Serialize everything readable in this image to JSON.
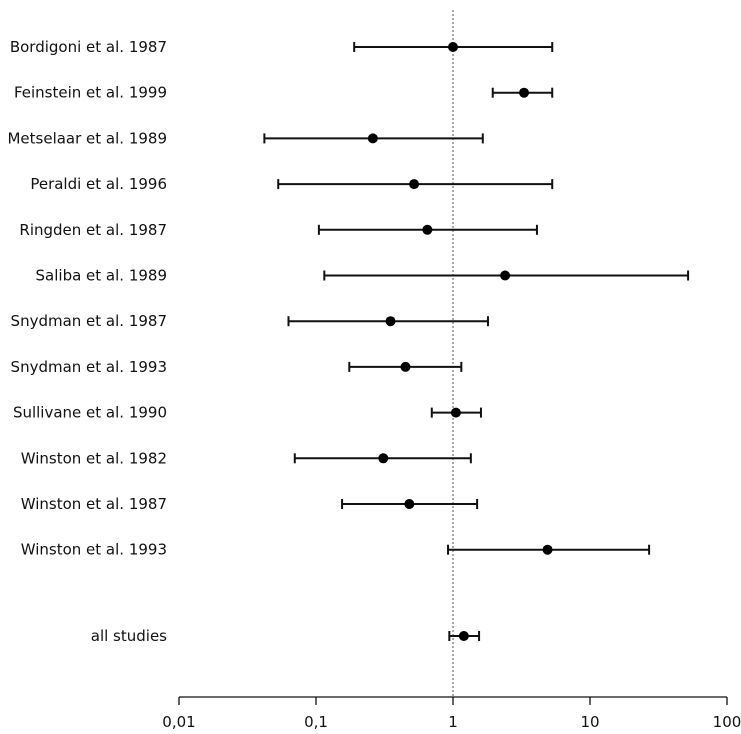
{
  "chart_data": {
    "type": "scatter",
    "subtype": "forest-plot",
    "title": "",
    "xlabel": "",
    "ylabel": "",
    "x_scale": "log",
    "xlim": [
      0.01,
      100
    ],
    "reference_line": 1,
    "x_ticks": [
      {
        "value": 0.01,
        "label": "0,01"
      },
      {
        "value": 0.1,
        "label": "0,1"
      },
      {
        "value": 1,
        "label": "1"
      },
      {
        "value": 10,
        "label": "10"
      },
      {
        "value": 100,
        "label": "100"
      }
    ],
    "grid": false,
    "studies": [
      {
        "label": "Bordigoni et al. 1987",
        "estimate": 1.0,
        "lower": 0.19,
        "upper": 5.3
      },
      {
        "label": "Feinstein et al. 1999",
        "estimate": 3.3,
        "lower": 1.95,
        "upper": 5.3
      },
      {
        "label": "Metselaar et al. 1989",
        "estimate": 0.26,
        "lower": 0.042,
        "upper": 1.65
      },
      {
        "label": "Peraldi et al. 1996",
        "estimate": 0.52,
        "lower": 0.053,
        "upper": 5.3
      },
      {
        "label": "Ringden et al. 1987",
        "estimate": 0.65,
        "lower": 0.105,
        "upper": 4.1
      },
      {
        "label": "Saliba et al. 1989",
        "estimate": 2.4,
        "lower": 0.115,
        "upper": 52
      },
      {
        "label": "Snydman et al. 1987",
        "estimate": 0.35,
        "lower": 0.063,
        "upper": 1.8
      },
      {
        "label": "Snydman et al. 1993",
        "estimate": 0.45,
        "lower": 0.175,
        "upper": 1.15
      },
      {
        "label": "Sullivane et al. 1990",
        "estimate": 1.05,
        "lower": 0.7,
        "upper": 1.6
      },
      {
        "label": "Winston et al. 1982",
        "estimate": 0.31,
        "lower": 0.07,
        "upper": 1.35
      },
      {
        "label": "Winston et al. 1987",
        "estimate": 0.48,
        "lower": 0.155,
        "upper": 1.5
      },
      {
        "label": "Winston et al. 1993",
        "estimate": 4.9,
        "lower": 0.92,
        "upper": 27
      }
    ],
    "overall": {
      "label": "all studies",
      "estimate": 1.2,
      "lower": 0.94,
      "upper": 1.55
    }
  }
}
